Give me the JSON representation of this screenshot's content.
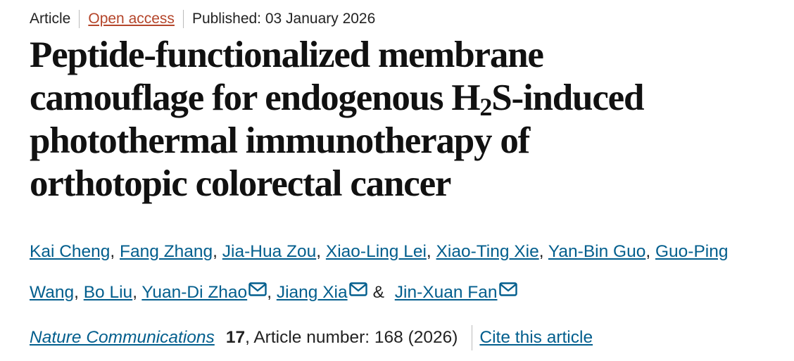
{
  "meta": {
    "type": "Article",
    "access": "Open access",
    "published": "Published: 03 January 2026"
  },
  "title": {
    "line_1": "Peptide-functionalized membrane",
    "line_2": "camouflage for endogenous H",
    "subscript": "2",
    "line_2_end": "S-induced",
    "line_3": "photothermal immunotherapy of",
    "line_4": "orthotopic colorectal cancer"
  },
  "authors": [
    {
      "name": "Kai Cheng",
      "sep": ","
    },
    {
      "name": "Fang Zhang",
      "sep": ","
    },
    {
      "name": "Jia-Hua Zou",
      "sep": ","
    },
    {
      "name": "Xiao-Ling Lei",
      "sep": ","
    },
    {
      "name": "Xiao-Ting Xie",
      "sep": ","
    },
    {
      "name": "Yan-Bin Guo",
      "sep": ","
    },
    {
      "name": "Guo-Ping Wang",
      "sep": ","
    },
    {
      "name": "Bo Liu",
      "sep": ","
    },
    {
      "name": "Yuan-Di Zhao",
      "email": true,
      "sep": ","
    },
    {
      "name": "Jiang Xia",
      "email": true,
      "sep": "&"
    },
    {
      "name": "Jin-Xuan Fan",
      "email": true
    }
  ],
  "citation": {
    "journal": "Nature Communications",
    "volume": "17",
    "details": ", Article number: 168 (2026)",
    "cite": "Cite this article"
  }
}
